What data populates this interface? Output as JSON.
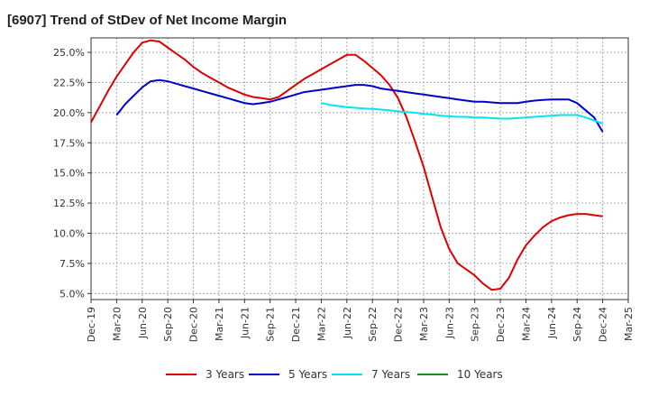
{
  "header": {
    "title": "[6907]  Trend of StDev of Net Income Margin"
  },
  "chart_data": {
    "type": "line",
    "title": "[6907]  Trend of StDev of Net Income Margin",
    "xlabel": "",
    "ylabel": "",
    "x_ticks": [
      "Dec-19",
      "Mar-20",
      "Jun-20",
      "Sep-20",
      "Dec-20",
      "Mar-21",
      "Jun-21",
      "Sep-21",
      "Dec-21",
      "Mar-22",
      "Jun-22",
      "Sep-22",
      "Dec-22",
      "Mar-23",
      "Jun-23",
      "Sep-23",
      "Dec-23",
      "Mar-24",
      "Jun-24",
      "Sep-24",
      "Dec-24",
      "Mar-25"
    ],
    "y_ticks": [
      "5.0%",
      "7.5%",
      "10.0%",
      "12.5%",
      "15.0%",
      "17.5%",
      "20.0%",
      "22.5%",
      "25.0%"
    ],
    "ylim": [
      4.5,
      26.2
    ],
    "grid": true,
    "legend_position": "bottom",
    "series": [
      {
        "name": "3 Years",
        "color": "#dd0000",
        "x": [
          "Dec-19",
          "Jan-20",
          "Feb-20",
          "Mar-20",
          "Apr-20",
          "May-20",
          "Jun-20",
          "Jul-20",
          "Aug-20",
          "Sep-20",
          "Oct-20",
          "Nov-20",
          "Dec-20",
          "Jan-21",
          "Feb-21",
          "Mar-21",
          "Apr-21",
          "May-21",
          "Jun-21",
          "Jul-21",
          "Aug-21",
          "Sep-21",
          "Oct-21",
          "Nov-21",
          "Dec-21",
          "Jan-22",
          "Feb-22",
          "Mar-22",
          "Apr-22",
          "May-22",
          "Jun-22",
          "Jul-22",
          "Aug-22",
          "Sep-22",
          "Oct-22",
          "Nov-22",
          "Dec-22",
          "Jan-23",
          "Feb-23",
          "Mar-23",
          "Apr-23",
          "May-23",
          "Jun-23",
          "Jul-23",
          "Aug-23",
          "Sep-23",
          "Oct-23",
          "Nov-23",
          "Dec-23",
          "Jan-24",
          "Feb-24",
          "Mar-24",
          "Apr-24",
          "May-24",
          "Jun-24",
          "Jul-24",
          "Aug-24",
          "Sep-24",
          "Oct-24",
          "Nov-24",
          "Dec-24"
        ],
        "values": [
          19.2,
          20.5,
          21.8,
          23.0,
          24.0,
          25.0,
          25.8,
          26.0,
          25.9,
          25.4,
          24.9,
          24.4,
          23.8,
          23.3,
          22.9,
          22.5,
          22.1,
          21.8,
          21.5,
          21.3,
          21.2,
          21.1,
          21.3,
          21.8,
          22.3,
          22.8,
          23.2,
          23.6,
          24.0,
          24.4,
          24.8,
          24.8,
          24.3,
          23.7,
          23.1,
          22.3,
          21.2,
          19.6,
          17.6,
          15.5,
          13.0,
          10.5,
          8.7,
          7.5,
          7.0,
          6.5,
          5.8,
          5.3,
          5.4,
          6.3,
          7.8,
          9.0,
          9.8,
          10.5,
          11.0,
          11.3,
          11.5,
          11.6,
          11.6,
          11.5,
          11.4
        ]
      },
      {
        "name": "5 Years",
        "color": "#0000cc",
        "x": [
          "Mar-20",
          "Apr-20",
          "May-20",
          "Jun-20",
          "Jul-20",
          "Aug-20",
          "Sep-20",
          "Oct-20",
          "Nov-20",
          "Dec-20",
          "Jan-21",
          "Feb-21",
          "Mar-21",
          "Apr-21",
          "May-21",
          "Jun-21",
          "Jul-21",
          "Aug-21",
          "Sep-21",
          "Oct-21",
          "Nov-21",
          "Dec-21",
          "Jan-22",
          "Feb-22",
          "Mar-22",
          "Apr-22",
          "May-22",
          "Jun-22",
          "Jul-22",
          "Aug-22",
          "Sep-22",
          "Oct-22",
          "Nov-22",
          "Dec-22",
          "Jan-23",
          "Feb-23",
          "Mar-23",
          "Apr-23",
          "May-23",
          "Jun-23",
          "Jul-23",
          "Aug-23",
          "Sep-23",
          "Oct-23",
          "Nov-23",
          "Dec-23",
          "Jan-24",
          "Feb-24",
          "Mar-24",
          "Apr-24",
          "May-24",
          "Jun-24",
          "Jul-24",
          "Aug-24",
          "Sep-24",
          "Oct-24",
          "Nov-24",
          "Dec-24"
        ],
        "values": [
          19.8,
          20.7,
          21.4,
          22.1,
          22.6,
          22.7,
          22.6,
          22.4,
          22.2,
          22.0,
          21.8,
          21.6,
          21.4,
          21.2,
          21.0,
          20.8,
          20.7,
          20.8,
          20.9,
          21.1,
          21.3,
          21.5,
          21.7,
          21.8,
          21.9,
          22.0,
          22.1,
          22.2,
          22.3,
          22.3,
          22.2,
          22.0,
          21.9,
          21.8,
          21.7,
          21.6,
          21.5,
          21.4,
          21.3,
          21.2,
          21.1,
          21.0,
          20.9,
          20.9,
          20.85,
          20.8,
          20.8,
          20.8,
          20.9,
          21.0,
          21.05,
          21.1,
          21.1,
          21.1,
          20.8,
          20.2,
          19.6,
          18.4
        ]
      },
      {
        "name": "7 Years",
        "color": "#00e5ee",
        "x": [
          "Mar-22",
          "Apr-22",
          "May-22",
          "Jun-22",
          "Jul-22",
          "Aug-22",
          "Sep-22",
          "Oct-22",
          "Nov-22",
          "Dec-22",
          "Jan-23",
          "Feb-23",
          "Mar-23",
          "Apr-23",
          "May-23",
          "Jun-23",
          "Jul-23",
          "Aug-23",
          "Sep-23",
          "Oct-23",
          "Nov-23",
          "Dec-23",
          "Jan-24",
          "Feb-24",
          "Mar-24",
          "Apr-24",
          "May-24",
          "Jun-24",
          "Jul-24",
          "Aug-24",
          "Sep-24",
          "Oct-24",
          "Nov-24",
          "Dec-24"
        ],
        "values": [
          20.8,
          20.65,
          20.55,
          20.45,
          20.4,
          20.35,
          20.3,
          20.25,
          20.2,
          20.1,
          20.05,
          20.0,
          19.9,
          19.85,
          19.75,
          19.7,
          19.65,
          19.65,
          19.6,
          19.6,
          19.55,
          19.5,
          19.5,
          19.55,
          19.6,
          19.65,
          19.7,
          19.75,
          19.8,
          19.8,
          19.8,
          19.6,
          19.35,
          19.1
        ]
      },
      {
        "name": "10 Years",
        "color": "#228b22",
        "x": [],
        "values": []
      }
    ]
  }
}
